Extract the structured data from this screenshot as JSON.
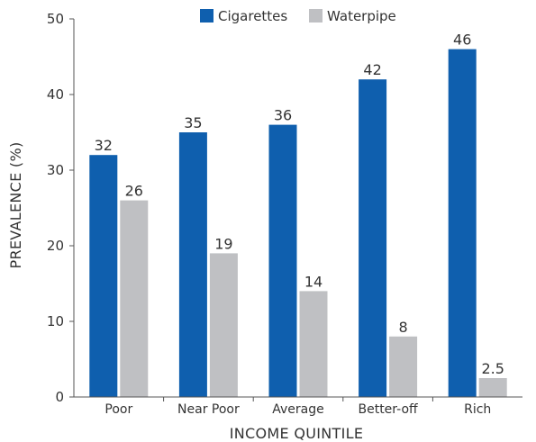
{
  "chart_data": {
    "type": "bar",
    "title": "",
    "xlabel": "INCOME QUINTILE",
    "ylabel": "PREVALENCE (%)",
    "ylim": [
      0,
      50
    ],
    "yticks": [
      0,
      10,
      20,
      30,
      40,
      50
    ],
    "grid": false,
    "legend_position": "top",
    "categories": [
      "Poor",
      "Near Poor",
      "Average",
      "Better-off",
      "Rich"
    ],
    "series": [
      {
        "name": "Cigarettes",
        "color": "#0f5fae",
        "values": [
          32,
          35,
          36,
          42,
          46
        ],
        "labels": [
          "32",
          "35",
          "36",
          "42",
          "46"
        ]
      },
      {
        "name": "Waterpipe",
        "color": "#bfc0c3",
        "values": [
          26,
          19,
          14,
          8,
          2.5
        ],
        "labels": [
          "26",
          "19",
          "14",
          "8",
          "2.5"
        ]
      }
    ]
  }
}
